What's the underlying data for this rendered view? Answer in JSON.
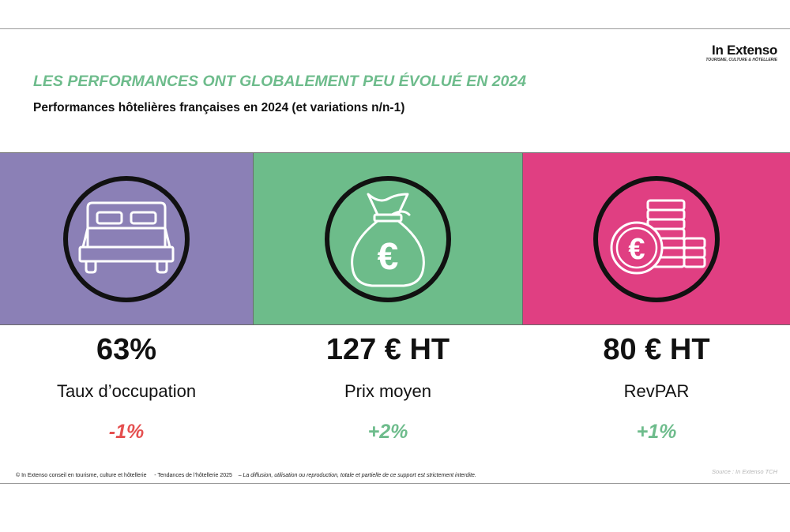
{
  "brand": {
    "name": "In Extenso",
    "tagline": "TOURISME, CULTURE & HÔTELLERIE"
  },
  "headline": "LES PERFORMANCES ONT GLOBALEMENT PEU ÉVOLUÉ EN 2024",
  "subtitle": "Performances hôtelières françaises en 2024 (et variations n/n-1)",
  "colors": {
    "headline": "#6ebc8c",
    "panel_occupation": "#8b80b6",
    "panel_price": "#6dbc8a",
    "panel_revpar": "#e03f82",
    "variation_negative": "#e55050",
    "variation_positive": "#6ebc8c"
  },
  "kpis": [
    {
      "icon": "bed-icon",
      "value": "63%",
      "label": "Taux d’occupation",
      "variation": "-1%",
      "trend": "negative"
    },
    {
      "icon": "money-bag-euro-icon",
      "value": "127 € HT",
      "label": "Prix moyen",
      "variation": "+2%",
      "trend": "positive"
    },
    {
      "icon": "coin-stack-euro-icon",
      "value": "80 € HT",
      "label": "RevPAR",
      "variation": "+1%",
      "trend": "positive"
    }
  ],
  "footer": {
    "copyright": "© In Extenso conseil en tourisme, culture et hôtellerie",
    "report": "- Tendances de l’hôtellerie 2025",
    "notice": "– La diffusion, utilisation ou reproduction, totale et partielle de ce support est strictement interdite.",
    "source": "Source : In Extenso TCH"
  }
}
